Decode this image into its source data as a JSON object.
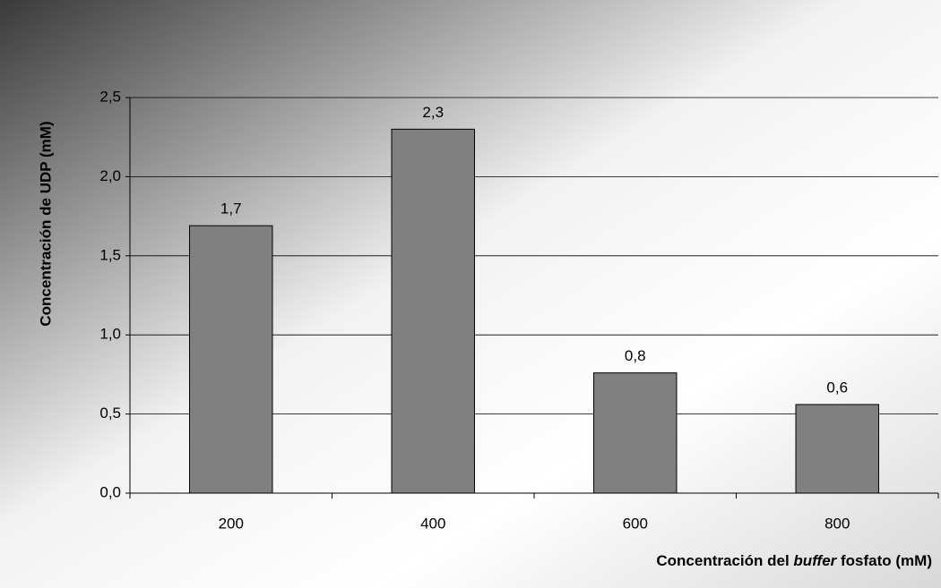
{
  "chart_data": {
    "type": "bar",
    "y_label": "Concentración de UDP (mM)",
    "x_label": {
      "before": "Concentración del ",
      "italic": "buffer",
      "after": " fosfato (mM)"
    },
    "categories": [
      "200",
      "400",
      "600",
      "800"
    ],
    "values": [
      1.69,
      2.3,
      0.76,
      0.56
    ],
    "value_labels": [
      "1,7",
      "2,3",
      "0,8",
      "0,6"
    ],
    "color": "#808080",
    "ylim": [
      0,
      2.5
    ],
    "yticks": [
      {
        "value": 0,
        "label": "0,0"
      },
      {
        "value": 0.5,
        "label": "0,5"
      },
      {
        "value": 1,
        "label": "1,0"
      },
      {
        "value": 1.5,
        "label": "1,5"
      },
      {
        "value": 2,
        "label": "2,0"
      },
      {
        "value": 2.5,
        "label": "2,5"
      }
    ],
    "grid": true
  }
}
